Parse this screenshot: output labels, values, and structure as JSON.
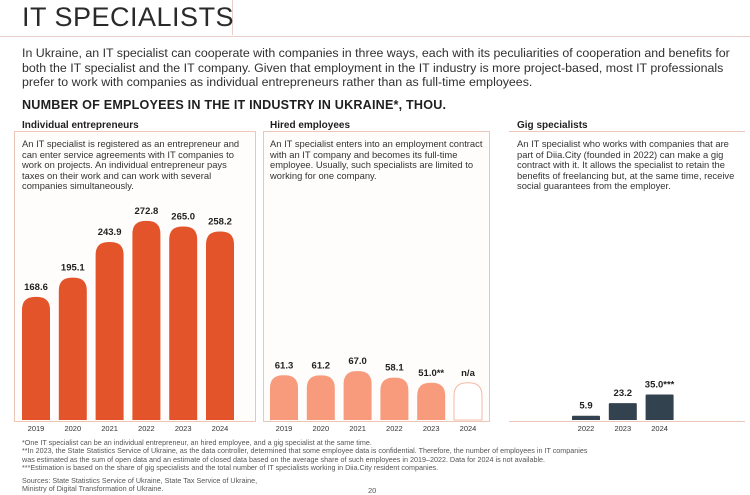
{
  "page": {
    "title": "IT SPECIALISTS",
    "intro": "In Ukraine, an IT specialist can cooperate with companies in three ways, each with its peculiarities of cooperation and benefits for both the IT specialist and the IT company. Given that employment in the IT industry is more project-based, most IT professionals prefer to work with companies as individual entrepreneurs rather than as full-time employees.",
    "section_title": "NUMBER OF EMPLOYEES IN THE IT INDUSTRY IN UKRAINE*, THOU.",
    "page_number": "20"
  },
  "panels": {
    "individual": {
      "label": "Individual entrepreneurs",
      "description": "An IT specialist is registered as an entrepreneur and can enter service agreements with IT companies to work on projects. An individual entrepreneur pays taxes on their work and can work with several companies simultaneously."
    },
    "hired": {
      "label": "Hired employees",
      "description": "An IT specialist enters into an employment contract with an IT company and becomes its full-time employee. Usually, such specialists are limited to working for one company."
    },
    "gig": {
      "label": "Gig specialists",
      "description": "An IT specialist who works with companies that are part of Diia.City (founded in 2022) can make a gig contract with it. It allows the specialist to retain the benefits of freelancing but, at the same time, receive social guarantees from the employer."
    }
  },
  "chart_data": [
    {
      "type": "bar",
      "name": "Individual entrepreneurs",
      "categories": [
        "2019",
        "2020",
        "2021",
        "2022",
        "2023",
        "2024"
      ],
      "values": [
        168.6,
        195.1,
        243.9,
        272.8,
        265.0,
        258.2
      ],
      "labels": [
        "168.6",
        "195.1",
        "243.9",
        "272.8",
        "265.0",
        "258.2"
      ],
      "color": "#e4542a"
    },
    {
      "type": "bar",
      "name": "Hired employees",
      "categories": [
        "2019",
        "2020",
        "2021",
        "2022",
        "2023",
        "2024"
      ],
      "values": [
        61.3,
        61.2,
        67.0,
        58.1,
        51.0,
        null
      ],
      "labels": [
        "61.3",
        "61.2",
        "67.0",
        "58.1",
        "51.0**",
        "n/a"
      ],
      "placeholder_value": 51.0,
      "color": "#f79b7c"
    },
    {
      "type": "bar",
      "name": "Gig specialists",
      "categories": [
        "2022",
        "2023",
        "2024"
      ],
      "values": [
        5.9,
        23.2,
        35.0
      ],
      "labels": [
        "5.9",
        "23.2",
        "35.0***"
      ],
      "color": "#33424f"
    }
  ],
  "footnotes": [
    "*One IT specialist can be an individual entrepreneur, an hired employee, and a gig specialist at the same time.",
    "**In 2023, the State Statistics Service of Ukraine, as the data controller, determined that some employee data is confidential. Therefore, the number of employees in IT companies",
    "was estimated as the sum of open data and an estimate of closed data based on the average share of such employees in 2019–2022. Data for 2024 is not available.",
    "***Estimation is based on the share of gig specialists and the total number of IT specialists working in Diia.City resident companies."
  ],
  "sources": [
    "Sources: State Statistics Service of Ukraine, State Tax Service of Ukraine,",
    "Ministry of Digital Transformation of Ukraine."
  ]
}
